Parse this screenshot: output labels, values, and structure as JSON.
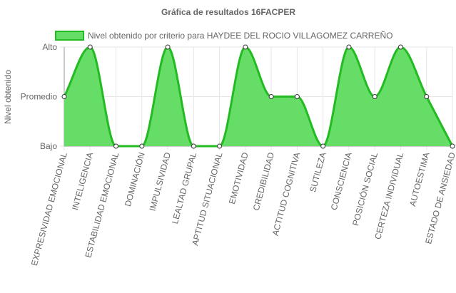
{
  "chart_data": {
    "type": "area",
    "title": "Gráfica de resultados 16FACPER",
    "ylabel": "Nivel obtenido",
    "y_levels": [
      "Bajo",
      "Promedio",
      "Alto"
    ],
    "ylim": [
      0,
      2
    ],
    "categories": [
      "EXPRESIVIDAD EMOCIONAL",
      "INTELIGENCIA",
      "ESTABILIDAD EMOCIONAL",
      "DOMINACIÓN",
      "IMPULSIVIDAD",
      "LEALTAD GRUPAL",
      "APTITUD SITUACIONAL",
      "EMOTIVIDAD",
      "CREDIBILIDAD",
      "ACTITUD COGNITIVA",
      "SUTILEZA",
      "CONSCIENCIA",
      "POSICIÓN SOCIAL",
      "CERTEZA INDIVIDUAL",
      "AUTOESTIMA",
      "ESTADO DE ANSIEDAD"
    ],
    "series": [
      {
        "name": "Nivel obtenido por criterio para HAYDEE DEL ROCIO VILLAGOMEZ CARREÑO",
        "values": [
          1,
          2,
          0,
          0,
          2,
          0,
          0,
          2,
          1,
          1,
          0,
          2,
          1,
          2,
          1,
          0
        ]
      }
    ],
    "grid": true,
    "legend": "top",
    "colors": {
      "fill": "#66dd66",
      "line": "#22bb22",
      "grid": "#e6e6e6",
      "axis": "#999999",
      "point_fill": "#ffffff",
      "point_stroke": "#333333"
    }
  }
}
